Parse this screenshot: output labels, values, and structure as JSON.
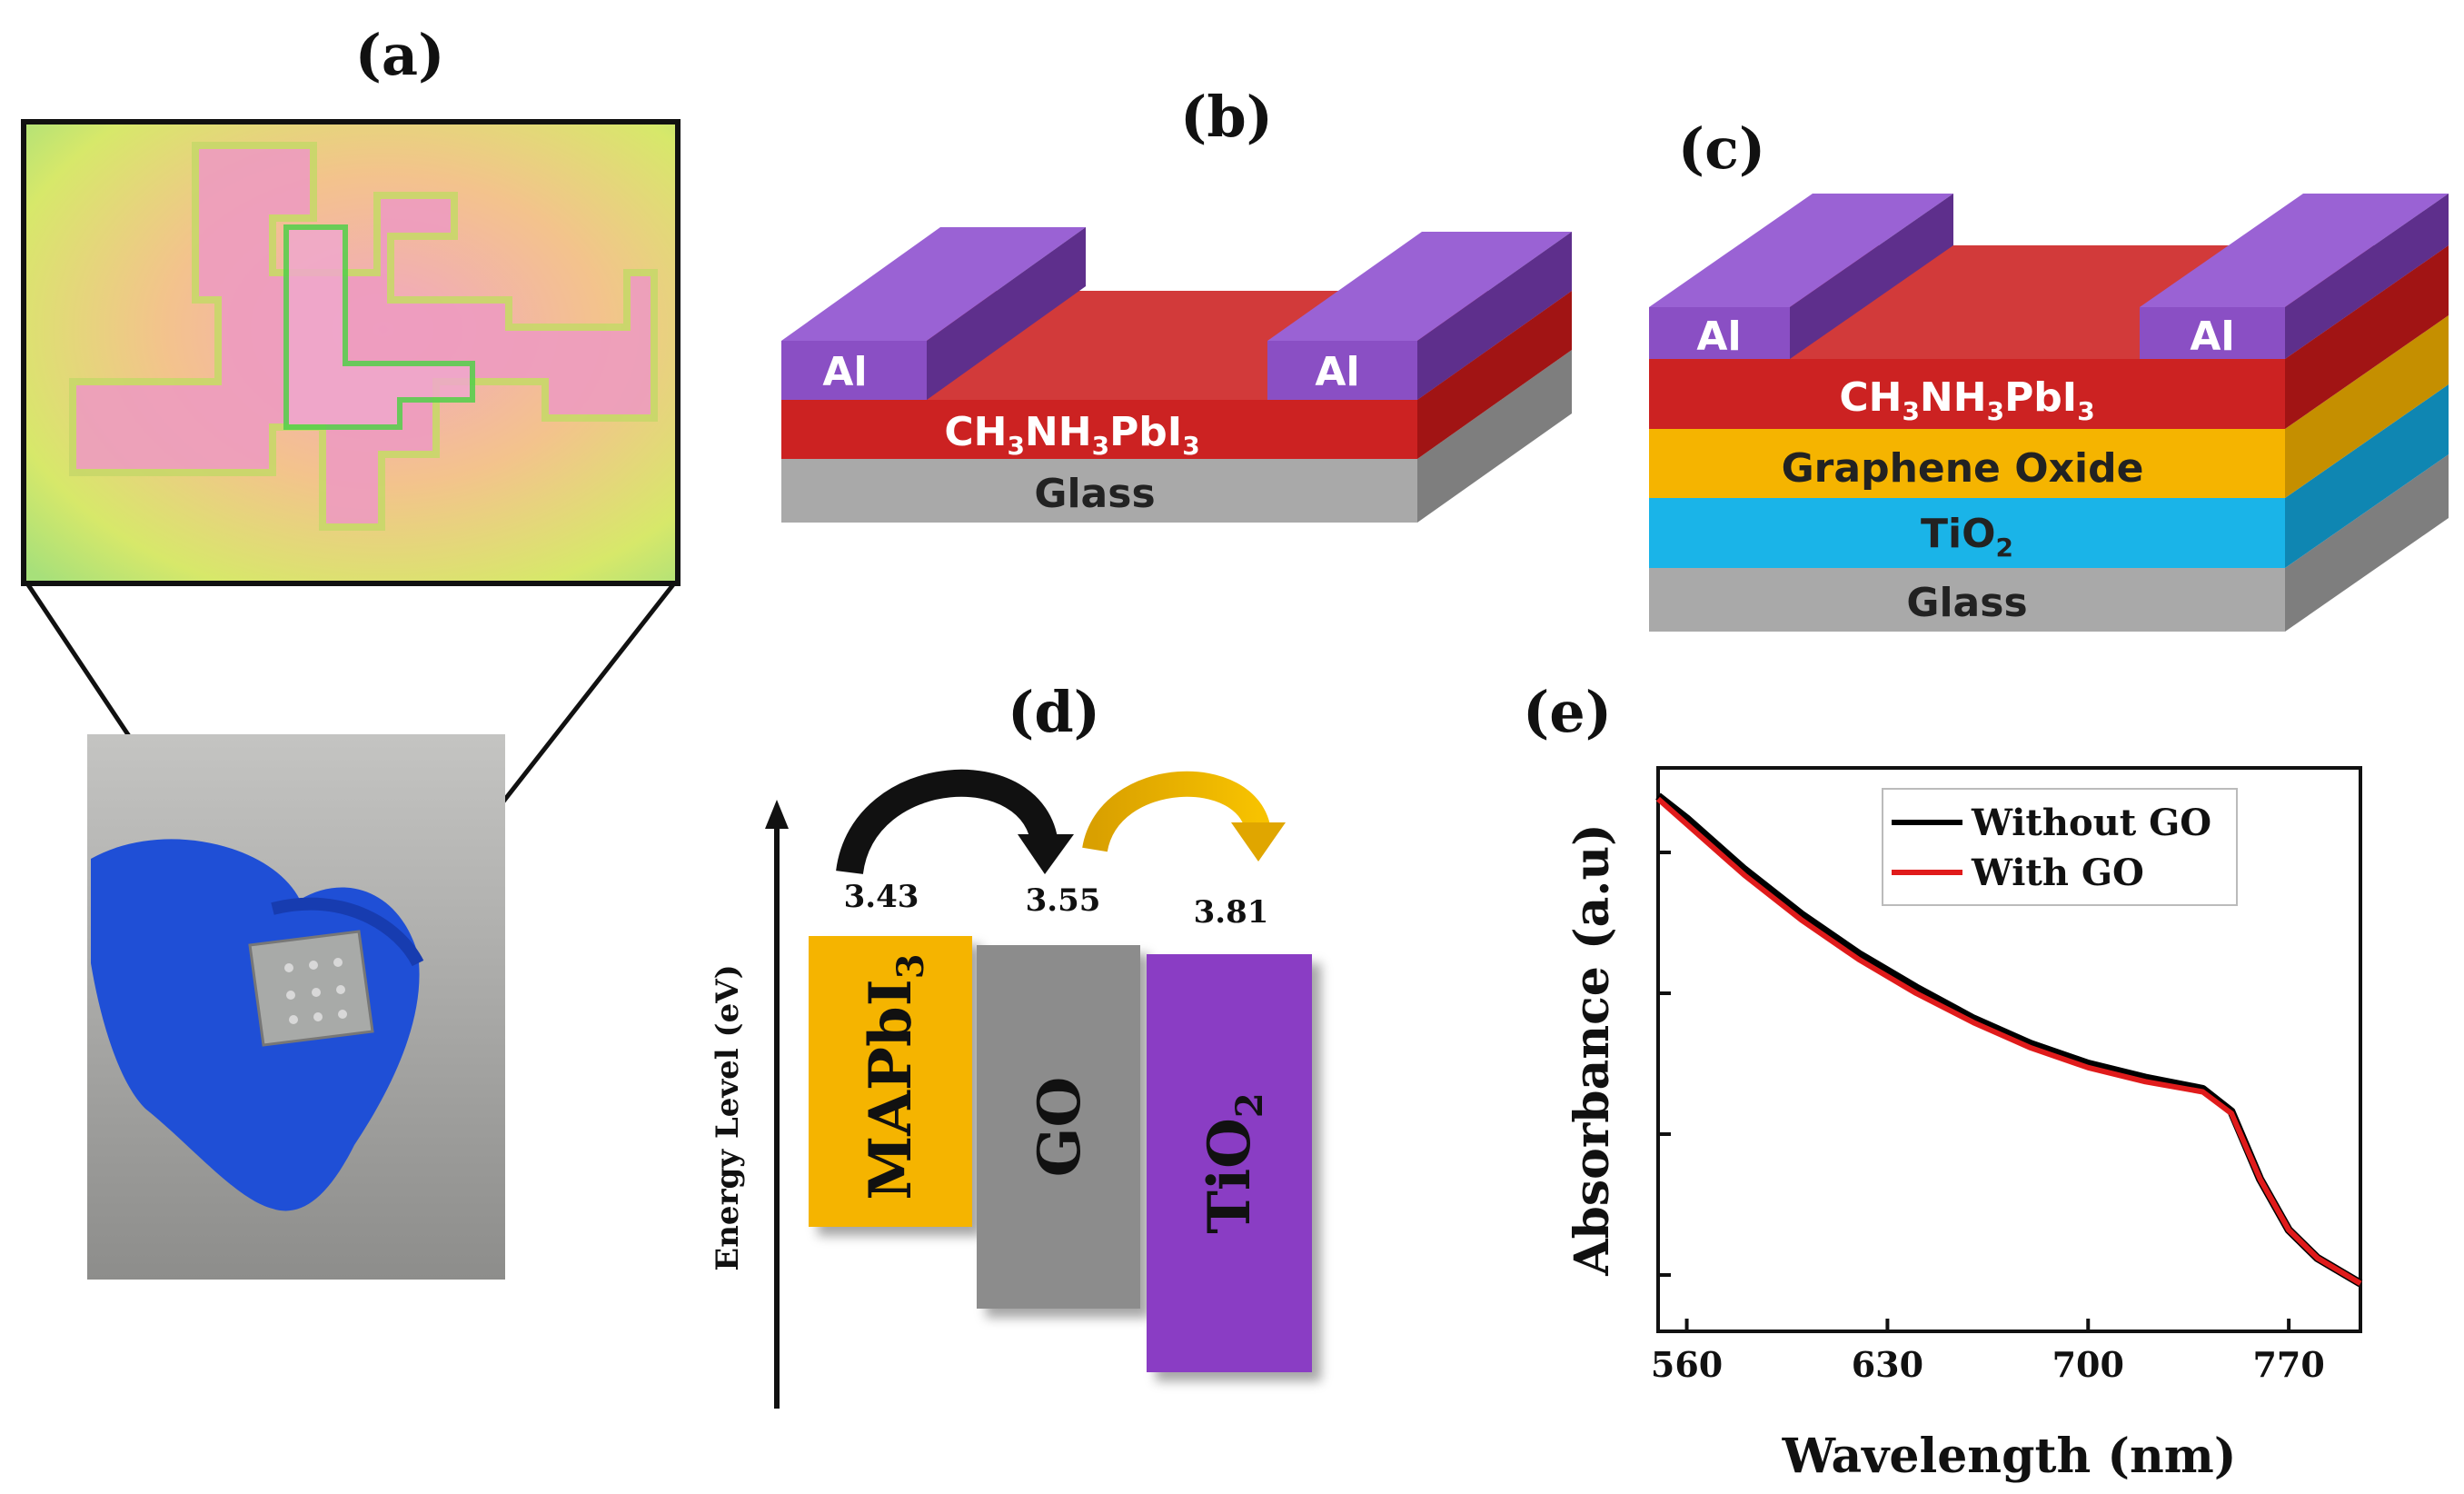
{
  "panels": {
    "a": {
      "label": "(a)"
    },
    "b": {
      "label": "(b)",
      "electrode": "Al",
      "absorber": "CH3NH3PbI3",
      "substrate": "Glass"
    },
    "c": {
      "label": "(c)",
      "electrode": "Al",
      "absorber": "CH3NH3PbI3",
      "interlayer": "Graphene Oxide",
      "etl": "TiO2",
      "substrate": "Glass"
    },
    "d": {
      "label": "(d)",
      "axis_label": "Energy Level (eV)",
      "levels": [
        {
          "name": "MAPbI3",
          "value": "3.43"
        },
        {
          "name": "GO",
          "value": "3.55"
        },
        {
          "name": "TiO2",
          "value": "3.81"
        }
      ]
    },
    "e": {
      "label": "(e)"
    }
  },
  "colors": {
    "perovskite": "#cc2222",
    "electrode": "#8a4fc4",
    "go": "#f5b400",
    "tio2": "#1ab4e8",
    "glass": "#a9a9a9"
  },
  "chart_data": {
    "type": "line",
    "title": "",
    "xlabel": "Wavelength (nm)",
    "ylabel": "Absorbance (a.u)",
    "xlim": [
      550,
      795
    ],
    "ylim": [
      0,
      1
    ],
    "xticks": [
      560,
      630,
      700,
      770
    ],
    "legend_position": "top-right",
    "series": [
      {
        "name": "Without GO",
        "color": "#000000",
        "x": [
          550,
          560,
          580,
          600,
          620,
          640,
          660,
          680,
          700,
          720,
          740,
          750,
          760,
          770,
          780,
          795
        ],
        "y": [
          0.95,
          0.91,
          0.82,
          0.74,
          0.67,
          0.61,
          0.555,
          0.51,
          0.475,
          0.45,
          0.43,
          0.39,
          0.27,
          0.18,
          0.13,
          0.085
        ]
      },
      {
        "name": "With GO",
        "color": "#e01b1b",
        "x": [
          550,
          560,
          580,
          600,
          620,
          640,
          660,
          680,
          700,
          720,
          740,
          750,
          760,
          770,
          780,
          795
        ],
        "y": [
          0.945,
          0.9,
          0.81,
          0.73,
          0.66,
          0.6,
          0.548,
          0.503,
          0.468,
          0.443,
          0.425,
          0.387,
          0.27,
          0.18,
          0.13,
          0.085
        ]
      }
    ]
  }
}
